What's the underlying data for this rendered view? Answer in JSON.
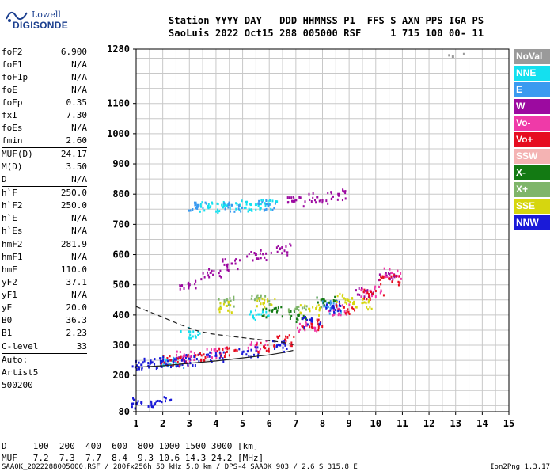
{
  "logo": {
    "line1": "Lowell",
    "line2": "DIGISONDE"
  },
  "header": {
    "line1": "Station YYYY DAY   DDD HHMMSS P1  FFS S AXN PPS IGA PS",
    "line2": "SaoLuis 2022 Oct15 288 005000 RSF     1 715 100 00- 11"
  },
  "params": [
    {
      "label": "foF2",
      "value": "6.900"
    },
    {
      "label": "foF1",
      "value": "N/A"
    },
    {
      "label": "foF1p",
      "value": "N/A"
    },
    {
      "label": "foE",
      "value": "N/A"
    },
    {
      "label": "foEp",
      "value": "0.35"
    },
    {
      "label": "fxI",
      "value": "7.30"
    },
    {
      "label": "foEs",
      "value": "N/A"
    },
    {
      "label": "fmin",
      "value": "2.60"
    },
    {
      "sep": true
    },
    {
      "label": "MUF(D)",
      "value": "24.17"
    },
    {
      "label": "M(D)",
      "value": "3.50"
    },
    {
      "label": "D",
      "value": "N/A"
    },
    {
      "sep": true
    },
    {
      "label": "h`F",
      "value": "250.0"
    },
    {
      "label": "h`F2",
      "value": "250.0"
    },
    {
      "label": "h`E",
      "value": "N/A"
    },
    {
      "label": "h`Es",
      "value": "N/A"
    },
    {
      "sep": true
    },
    {
      "label": "hmF2",
      "value": "281.9"
    },
    {
      "label": "hmF1",
      "value": "N/A"
    },
    {
      "label": "hmE",
      "value": "110.0"
    },
    {
      "label": "yF2",
      "value": "37.1"
    },
    {
      "label": "yF1",
      "value": "N/A"
    },
    {
      "label": "yE",
      "value": "20.0"
    },
    {
      "label": "B0",
      "value": "36.3"
    },
    {
      "label": "B1",
      "value": "2.23"
    },
    {
      "sep": true
    },
    {
      "label": "C-level",
      "value": "33"
    },
    {
      "sep": true
    },
    {
      "text": "Auto:"
    },
    {
      "text": "Artist5"
    },
    {
      "text": "500200"
    }
  ],
  "legend": [
    {
      "label": "NoVal",
      "bg": "#9a9a9a",
      "fg": "#ffffff"
    },
    {
      "label": "NNE",
      "bg": "#14e0ef",
      "fg": "#ffffff"
    },
    {
      "label": "E",
      "bg": "#3a9af0",
      "fg": "#ffffff"
    },
    {
      "label": "W",
      "bg": "#9c0aa0",
      "fg": "#ffffff"
    },
    {
      "label": "Vo-",
      "bg": "#ef3aa8",
      "fg": "#ffffff"
    },
    {
      "label": "Vo+",
      "bg": "#e60d20",
      "fg": "#ffffff"
    },
    {
      "label": "SSW",
      "bg": "#f4b3b3",
      "fg": "#ffffff"
    },
    {
      "label": "X-",
      "bg": "#137a13",
      "fg": "#ffffff"
    },
    {
      "label": "X+",
      "bg": "#7fb56a",
      "fg": "#ffffff"
    },
    {
      "label": "SSE",
      "bg": "#d6d60f",
      "fg": "#ffffff"
    },
    {
      "label": "NNW",
      "bg": "#1a1ad8",
      "fg": "#ffffff"
    }
  ],
  "chart_data": {
    "type": "scatter",
    "title": "",
    "xlabel": "",
    "ylabel": "",
    "xlim": [
      1,
      15
    ],
    "ylim": [
      80,
      1280
    ],
    "x_ticks": [
      1,
      2,
      3,
      4,
      5,
      6,
      7,
      8,
      9,
      10,
      11,
      12,
      13,
      14,
      15
    ],
    "y_ticks": [
      80,
      200,
      300,
      400,
      500,
      600,
      700,
      800,
      900,
      1000,
      1100,
      1280
    ],
    "grid": true,
    "legend_position": "right",
    "series": [
      {
        "name": "NNE",
        "points": [
          [
            3.7,
            760
          ],
          [
            4.3,
            762
          ],
          [
            4.9,
            764
          ],
          [
            5.5,
            765
          ],
          [
            6.0,
            766
          ],
          [
            2.3,
            250
          ],
          [
            3.0,
            345
          ],
          [
            5.6,
            402
          ]
        ]
      },
      {
        "name": "E",
        "points": [
          [
            3.3,
            758
          ],
          [
            4.6,
            763
          ],
          [
            5.9,
            767
          ],
          [
            2.4,
            243
          ],
          [
            8.4,
            425
          ],
          [
            8.3,
            440
          ]
        ]
      },
      {
        "name": "W",
        "points": [
          [
            3.0,
            500
          ],
          [
            3.8,
            540
          ],
          [
            4.6,
            570
          ],
          [
            5.5,
            600
          ],
          [
            6.4,
            620
          ],
          [
            7.0,
            780
          ],
          [
            7.8,
            790
          ],
          [
            8.6,
            800
          ],
          [
            2.8,
            250
          ],
          [
            9.6,
            480
          ],
          [
            10.4,
            530
          ]
        ]
      },
      {
        "name": "Vo-",
        "points": [
          [
            2.8,
            265
          ],
          [
            4.0,
            280
          ],
          [
            5.5,
            300
          ],
          [
            7.4,
            365
          ],
          [
            8.6,
            420
          ],
          [
            9.8,
            480
          ],
          [
            10.6,
            540
          ]
        ]
      },
      {
        "name": "Vo+",
        "points": [
          [
            2.3,
            250
          ],
          [
            3.2,
            262
          ],
          [
            4.4,
            278
          ],
          [
            5.8,
            295
          ],
          [
            6.6,
            318
          ],
          [
            7.6,
            370
          ],
          [
            8.8,
            425
          ],
          [
            9.9,
            470
          ],
          [
            10.5,
            520
          ]
        ]
      },
      {
        "name": "X-",
        "points": [
          [
            6.1,
            412
          ],
          [
            7.1,
            398
          ],
          [
            8.1,
            445
          ]
        ]
      },
      {
        "name": "X+",
        "points": [
          [
            4.4,
            450
          ],
          [
            5.6,
            455
          ],
          [
            7.0,
            420
          ]
        ]
      },
      {
        "name": "SSE",
        "points": [
          [
            4.4,
            430
          ],
          [
            5.8,
            440
          ],
          [
            7.5,
            420
          ],
          [
            8.8,
            455
          ],
          [
            9.5,
            440
          ]
        ]
      },
      {
        "name": "NNW",
        "points": [
          [
            1.2,
            235
          ],
          [
            1.6,
            243
          ],
          [
            2.2,
            248
          ],
          [
            3.0,
            255
          ],
          [
            4.0,
            265
          ],
          [
            5.2,
            280
          ],
          [
            6.4,
            300
          ],
          [
            7.6,
            380
          ],
          [
            8.4,
            430
          ],
          [
            1.2,
            110
          ],
          [
            1.9,
            115
          ]
        ]
      },
      {
        "name": "NoVal",
        "points": [
          [
            12.9,
            1255
          ]
        ]
      }
    ],
    "profile_solid": [
      [
        1.0,
        227
      ],
      [
        2.0,
        232
      ],
      [
        3.0,
        240
      ],
      [
        4.0,
        248
      ],
      [
        5.0,
        258
      ],
      [
        6.0,
        268
      ],
      [
        6.6,
        277
      ],
      [
        6.9,
        283
      ]
    ],
    "profile_dashed": [
      [
        1.0,
        428
      ],
      [
        1.8,
        400
      ],
      [
        2.6,
        370
      ],
      [
        3.2,
        350
      ],
      [
        3.8,
        338
      ],
      [
        4.5,
        330
      ],
      [
        5.5,
        320
      ],
      [
        6.5,
        310
      ],
      [
        7.0,
        300
      ]
    ]
  },
  "footer": {
    "d_row": "D     100  200  400  600  800 1000 1500 3000 [km]",
    "muf_row": "MUF   7.2  7.3  7.7  8.4  9.3 10.6 14.3 24.2 [MHz]",
    "source": "SAA0K_2022288005000.RSF / 280fx256h 50 kHz 5.0 km / DPS-4 SAA0K 903 / 2.6 S 315.8 E",
    "version": "Ion2Png 1.3.17"
  }
}
